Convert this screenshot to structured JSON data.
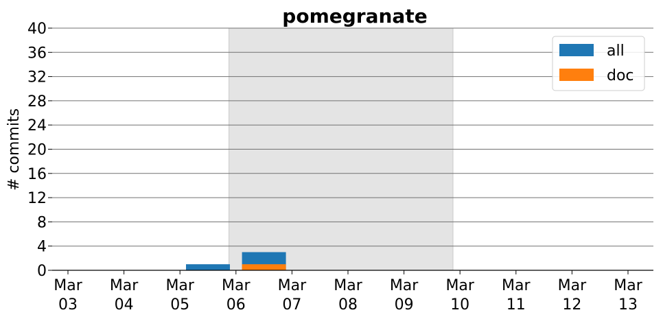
{
  "chart_data": {
    "type": "bar",
    "title": "pomegranate",
    "xlabel": "",
    "ylabel": "# commits",
    "ylim": [
      0,
      40
    ],
    "yticks": [
      0,
      4,
      8,
      12,
      16,
      20,
      24,
      28,
      32,
      36,
      40
    ],
    "categories": [
      "2024-03-03",
      "2024-03-04",
      "2024-03-05",
      "2024-03-06",
      "2024-03-07",
      "2024-03-08",
      "2024-03-09",
      "2024-03-10",
      "2024-03-11",
      "2024-03-12",
      "2024-03-13"
    ],
    "tick_labels": [
      [
        "Mar",
        "03"
      ],
      [
        "Mar",
        "04"
      ],
      [
        "Mar",
        "05"
      ],
      [
        "Mar",
        "06"
      ],
      [
        "Mar",
        "07"
      ],
      [
        "Mar",
        "08"
      ],
      [
        "Mar",
        "09"
      ],
      [
        "Mar",
        "10"
      ],
      [
        "Mar",
        "11"
      ],
      [
        "Mar",
        "12"
      ],
      [
        "Mar",
        "13"
      ]
    ],
    "bars": [
      {
        "series": "all",
        "x": "2024-03-05 12:00",
        "value": 1
      },
      {
        "series": "all",
        "x": "2024-03-06 12:00",
        "value": 3
      },
      {
        "series": "doc",
        "x": "2024-03-06 12:00",
        "value": 1
      }
    ],
    "series": [
      {
        "name": "all",
        "color": "#1f77b4"
      },
      {
        "name": "doc",
        "color": "#ff7f0e"
      }
    ],
    "shaded_region": {
      "start": "2024-03-05 21:00",
      "end": "2024-03-09 21:00",
      "color": "#e4e4e4"
    },
    "grid": "horizontal",
    "legend": "top-right"
  }
}
